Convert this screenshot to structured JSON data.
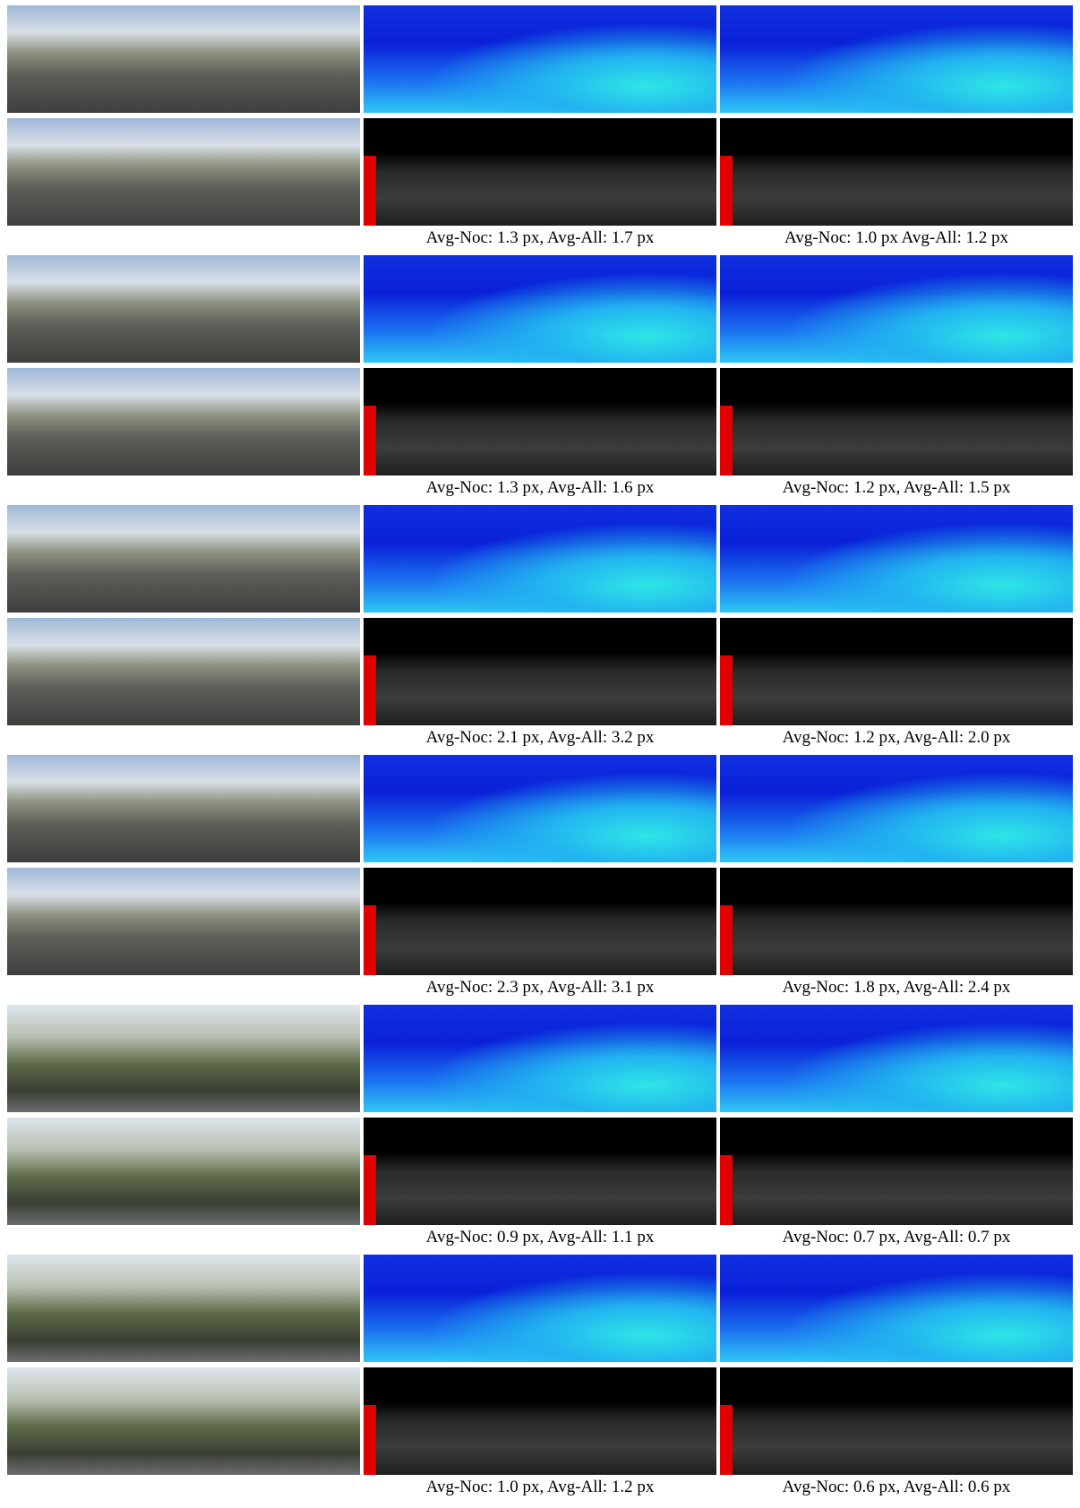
{
  "figure": {
    "groups": [
      {
        "captions": [
          "Avg-Noc: 1.3 px, Avg-All: 1.7 px",
          "Avg-Noc: 1.0 px Avg-All: 1.2 px"
        ]
      },
      {
        "captions": [
          "Avg-Noc: 1.3 px, Avg-All: 1.6 px",
          "Avg-Noc: 1.2 px, Avg-All: 1.5 px"
        ]
      },
      {
        "captions": [
          "Avg-Noc: 2.1 px, Avg-All: 3.2 px",
          "Avg-Noc: 1.2 px, Avg-All: 2.0 px"
        ]
      },
      {
        "captions": [
          "Avg-Noc: 2.3 px, Avg-All: 3.1 px",
          "Avg-Noc: 1.8 px, Avg-All: 2.4 px"
        ]
      },
      {
        "captions": [
          "Avg-Noc: 0.9 px, Avg-All: 1.1 px",
          "Avg-Noc: 0.7 px, Avg-All: 0.7 px"
        ]
      },
      {
        "captions": [
          "Avg-Noc: 1.0 px, Avg-All: 1.2 px",
          "Avg-Noc: 0.6 px, Avg-All: 0.6 px"
        ]
      }
    ]
  }
}
